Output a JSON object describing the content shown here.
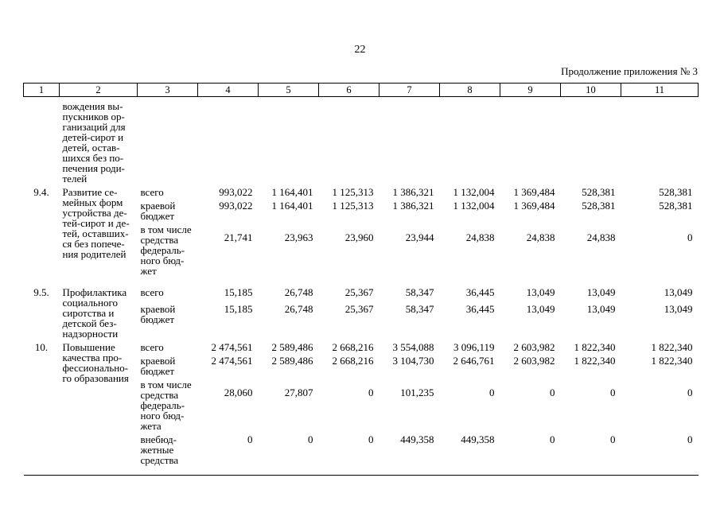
{
  "page": {
    "number": "22",
    "continuation_label": "Продолжение приложения № 3"
  },
  "table": {
    "header_cells": [
      "1",
      "2",
      "3",
      "4",
      "5",
      "6",
      "7",
      "8",
      "9",
      "10",
      "11"
    ],
    "groups": [
      {
        "num": "",
        "name": "вождения вы-\nпускников ор-\nганизаций для\nдетей-сирот и\nдетей, остав-\nшихся без по-\nпечения роди-\nтелей",
        "subrows": []
      },
      {
        "num": "9.4.",
        "name": "Развитие се-\nмейных форм\nустройства де-\nтей-сирот и де-\nтей, оставших-\nся без попече-\nния родителей",
        "subrows": [
          {
            "label": "всего",
            "values": [
              "993,022",
              "1 164,401",
              "1 125,313",
              "1 386,321",
              "1 132,004",
              "1 369,484",
              "528,381",
              "528,381"
            ]
          },
          {
            "label": "краевой\nбюджет",
            "values": [
              "993,022",
              "1 164,401",
              "1 125,313",
              "1 386,321",
              "1 132,004",
              "1 369,484",
              "528,381",
              "528,381"
            ]
          },
          {
            "label": "в том числе\nсредства\nфедераль-\nного бюд-\nжет",
            "values": [
              "21,741",
              "23,963",
              "23,960",
              "23,944",
              "24,838",
              "24,838",
              "24,838",
              "0"
            ]
          }
        ]
      },
      {
        "num": "9.5.",
        "name": "Профилактика\nсоциального\nсиротства и\nдетской без-\nнадзорности",
        "subrows": [
          {
            "label": "всего",
            "values": [
              "15,185",
              "26,748",
              "25,367",
              "58,347",
              "36,445",
              "13,049",
              "13,049",
              "13,049"
            ]
          },
          {
            "label": "краевой\nбюджет",
            "values": [
              "15,185",
              "26,748",
              "25,367",
              "58,347",
              "36,445",
              "13,049",
              "13,049",
              "13,049"
            ]
          }
        ]
      },
      {
        "num": "10.",
        "name": "Повышение\nкачества про-\nфессионально-\nго образования",
        "subrows": [
          {
            "label": "всего",
            "values": [
              "2 474,561",
              "2 589,486",
              "2 668,216",
              "3 554,088",
              "3 096,119",
              "2 603,982",
              "1 822,340",
              "1 822,340"
            ]
          },
          {
            "label": "краевой\nбюджет",
            "values": [
              "2 474,561",
              "2 589,486",
              "2 668,216",
              "3 104,730",
              "2 646,761",
              "2 603,982",
              "1 822,340",
              "1 822,340"
            ]
          },
          {
            "label": "в том числе\nсредства\nфедераль-\nного бюд-\nжета",
            "values": [
              "28,060",
              "27,807",
              "0",
              "101,235",
              "0",
              "0",
              "0",
              "0"
            ]
          },
          {
            "label": "внебюд-\nжетные\nсредства",
            "values": [
              "0",
              "0",
              "0",
              "449,358",
              "449,358",
              "0",
              "0",
              "0"
            ]
          }
        ]
      }
    ]
  }
}
